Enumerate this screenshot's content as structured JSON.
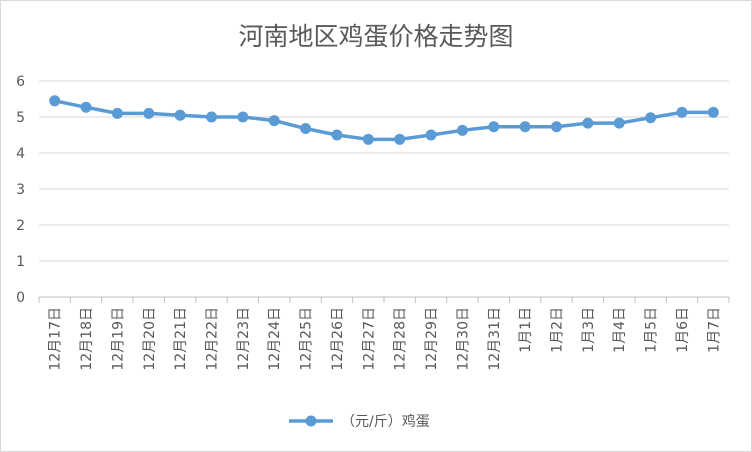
{
  "chart_data": {
    "type": "line",
    "title": "河南地区鸡蛋价格走势图",
    "xlabel": "",
    "ylabel": "",
    "ylim": [
      0,
      6
    ],
    "yticks": [
      0,
      1,
      2,
      3,
      4,
      5,
      6
    ],
    "grid": true,
    "legend_position": "bottom",
    "categories": [
      "12月17日",
      "12月18日",
      "12月19日",
      "12月20日",
      "12月21日",
      "12月22日",
      "12月23日",
      "12月24日",
      "12月25日",
      "12月26日",
      "12月27日",
      "12月28日",
      "12月29日",
      "12月30日",
      "12月31日",
      "1月1日",
      "1月2日",
      "1月3日",
      "1月4日",
      "1月5日",
      "1月6日",
      "1月7日"
    ],
    "series": [
      {
        "name": "（元/斤）鸡蛋",
        "color": "#5b9bd5",
        "values": [
          5.45,
          5.27,
          5.1,
          5.1,
          5.05,
          5.0,
          5.0,
          4.9,
          4.68,
          4.5,
          4.38,
          4.38,
          4.5,
          4.63,
          4.73,
          4.73,
          4.73,
          4.83,
          4.83,
          4.98,
          5.13,
          5.13
        ]
      }
    ]
  }
}
